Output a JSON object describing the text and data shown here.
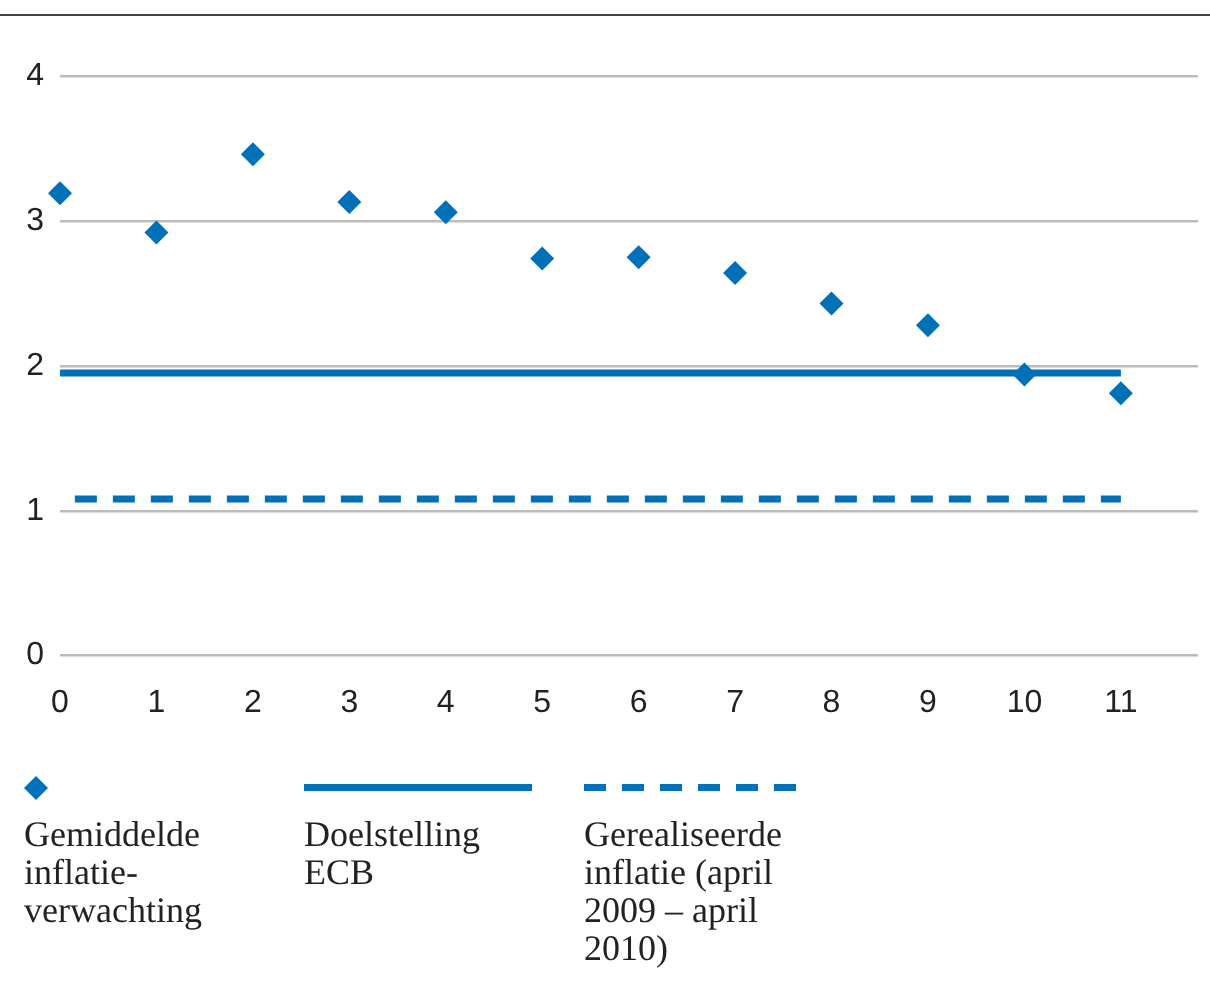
{
  "chart_data": {
    "type": "scatter",
    "x": [
      0,
      1,
      2,
      3,
      4,
      5,
      6,
      7,
      8,
      9,
      10,
      11
    ],
    "series": [
      {
        "name": "Gemiddelde inflatie-verwachting",
        "type": "scatter",
        "color": "#0070b8",
        "marker": "diamond",
        "values": [
          3.19,
          2.92,
          3.46,
          3.13,
          3.06,
          2.74,
          2.75,
          2.64,
          2.43,
          2.28,
          1.94,
          1.81
        ]
      },
      {
        "name": "Doelstelling ECB",
        "type": "line",
        "color": "#0070b8",
        "line_style": "solid",
        "marker": "none",
        "values": [
          1.95,
          1.95,
          1.95,
          1.95,
          1.95,
          1.95,
          1.95,
          1.95,
          1.95,
          1.95,
          1.95,
          1.95
        ]
      },
      {
        "name": "Gerealiseerde inflatie (april 2009 – april 2010)",
        "type": "line",
        "color": "#0070b8",
        "line_style": "dashed",
        "marker": "none",
        "values": [
          1.08,
          1.08,
          1.08,
          1.08,
          1.08,
          1.08,
          1.08,
          1.08,
          1.08,
          1.08,
          1.08,
          1.08
        ]
      }
    ],
    "xlim": [
      0,
      11.8
    ],
    "xticks": [
      0,
      1,
      2,
      3,
      4,
      5,
      6,
      7,
      8,
      9,
      10,
      11
    ],
    "ylim": [
      0,
      4
    ],
    "yticks": [
      0,
      1,
      2,
      3,
      4
    ],
    "grid": "y",
    "legend": "bottom"
  }
}
